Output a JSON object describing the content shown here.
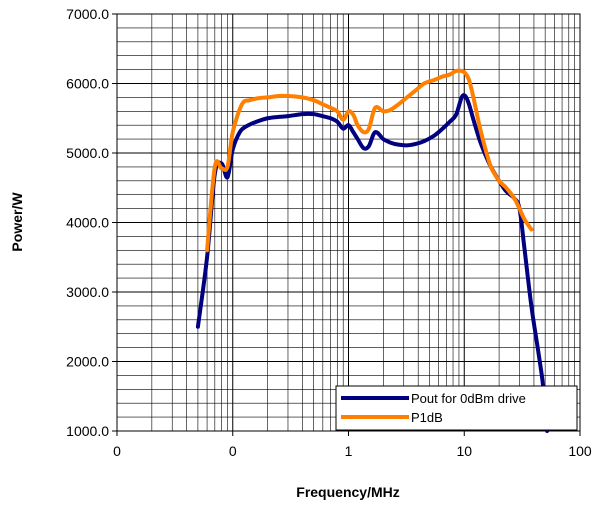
{
  "chart_data": {
    "type": "line",
    "title": "",
    "xlabel": "Frequency/MHz",
    "ylabel": "Power/W",
    "x_scale": "log",
    "xlim": [
      0.01,
      100
    ],
    "ylim": [
      1000,
      7000
    ],
    "x_tick_labels": [
      "0",
      "0",
      "1",
      "10",
      "100"
    ],
    "y_tick_labels": [
      "1000.0",
      "2000.0",
      "3000.0",
      "4000.0",
      "5000.0",
      "6000.0",
      "7000.0"
    ],
    "y_ticks": [
      1000,
      2000,
      3000,
      4000,
      5000,
      6000,
      7000
    ],
    "grid": true,
    "legend_position": "bottom-right",
    "series": [
      {
        "name": "Pout for 0dBm drive",
        "color": "#000080",
        "x": [
          0.05,
          0.06,
          0.07,
          0.08,
          0.09,
          0.1,
          0.115,
          0.13,
          0.16,
          0.2,
          0.25,
          0.3,
          0.4,
          0.5,
          0.6,
          0.7,
          0.8,
          0.9,
          1.0,
          1.1,
          1.2,
          1.35,
          1.5,
          1.7,
          2.0,
          2.3,
          2.7,
          3.2,
          3.8,
          4.5,
          5.5,
          6.5,
          7.5,
          8.5,
          9.5,
          10.2,
          11.0,
          12.0,
          13.5,
          15.0,
          17.0,
          20.0,
          23.0,
          27.0,
          30.0,
          33.0,
          38.0,
          44.0,
          48.0,
          52.0
        ],
        "y": [
          2500,
          3500,
          4700,
          4850,
          4650,
          5050,
          5300,
          5380,
          5450,
          5500,
          5520,
          5530,
          5560,
          5560,
          5530,
          5500,
          5450,
          5350,
          5400,
          5300,
          5200,
          5070,
          5100,
          5300,
          5200,
          5150,
          5120,
          5110,
          5130,
          5170,
          5250,
          5350,
          5450,
          5550,
          5800,
          5820,
          5700,
          5480,
          5200,
          5000,
          4800,
          4600,
          4450,
          4350,
          4200,
          3650,
          2800,
          2100,
          1650,
          1000
        ]
      },
      {
        "name": "P1dB",
        "color": "#ff7f00",
        "x": [
          0.06,
          0.07,
          0.08,
          0.09,
          0.1,
          0.12,
          0.14,
          0.17,
          0.2,
          0.25,
          0.3,
          0.4,
          0.5,
          0.6,
          0.7,
          0.8,
          0.9,
          1.0,
          1.1,
          1.2,
          1.35,
          1.5,
          1.7,
          2.0,
          2.3,
          2.7,
          3.2,
          3.8,
          4.5,
          5.5,
          6.5,
          7.5,
          8.5,
          9.5,
          10.2,
          11.0,
          12.0,
          13.5,
          15.0,
          17.0,
          20.0,
          23.0,
          27.0,
          30.0,
          33.0,
          38.0
        ],
        "y": [
          3600,
          4800,
          4780,
          4800,
          5300,
          5700,
          5760,
          5790,
          5800,
          5820,
          5820,
          5800,
          5760,
          5700,
          5650,
          5600,
          5480,
          5600,
          5550,
          5400,
          5300,
          5350,
          5650,
          5600,
          5620,
          5700,
          5800,
          5900,
          6000,
          6050,
          6100,
          6130,
          6180,
          6180,
          6150,
          6050,
          5800,
          5400,
          5100,
          4800,
          4600,
          4500,
          4350,
          4200,
          4050,
          3900
        ]
      }
    ]
  }
}
